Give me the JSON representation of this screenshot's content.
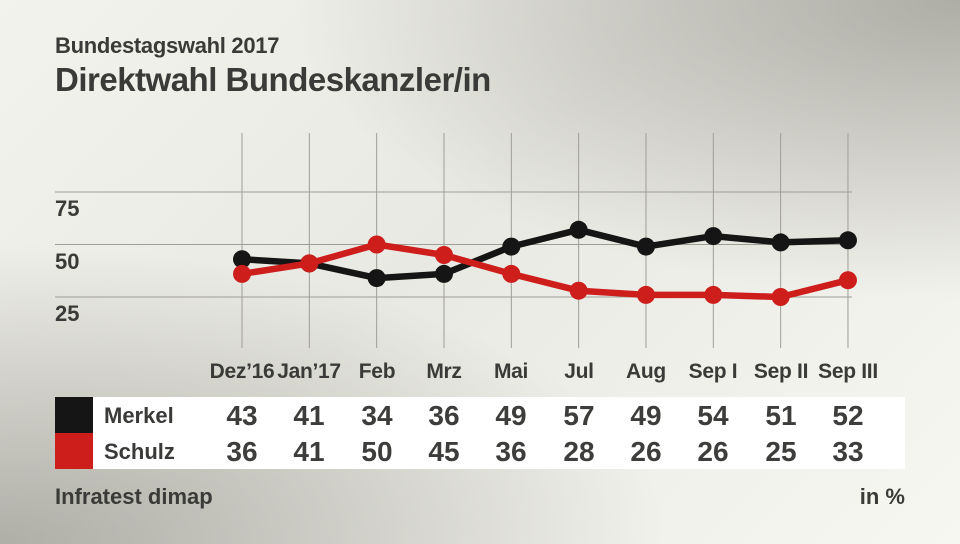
{
  "header": {
    "kicker": "Bundestagswahl 2017",
    "title": "Direktwahl Bundeskanzler/in"
  },
  "footer": {
    "source": "Infratest dimap",
    "unit": "in %"
  },
  "colors": {
    "merkel_black": "#151515",
    "schulz_red": "#cd1e1c",
    "grid": "#9e9e96",
    "text": "#3a3a38",
    "table_background": "#ffffff"
  },
  "chart_data": {
    "type": "line",
    "title": "Direktwahl Bundeskanzler/in",
    "subtitle": "Bundestagswahl 2017",
    "categories": [
      "Dez’16",
      "Jan’17",
      "Feb",
      "Mrz",
      "Mai",
      "Jul",
      "Aug",
      "Sep I",
      "Sep II",
      "Sep III"
    ],
    "series": [
      {
        "name": "Merkel",
        "color": "#151515",
        "values": [
          43,
          41,
          34,
          36,
          49,
          57,
          49,
          54,
          51,
          52
        ]
      },
      {
        "name": "Schulz",
        "color": "#cd1e1c",
        "values": [
          36,
          41,
          50,
          45,
          36,
          28,
          26,
          26,
          25,
          33
        ]
      }
    ],
    "yticks": [
      75,
      50,
      25
    ],
    "ylim": [
      0,
      103
    ],
    "unit": "in %",
    "grid": "both",
    "legend_position": "table-left"
  }
}
